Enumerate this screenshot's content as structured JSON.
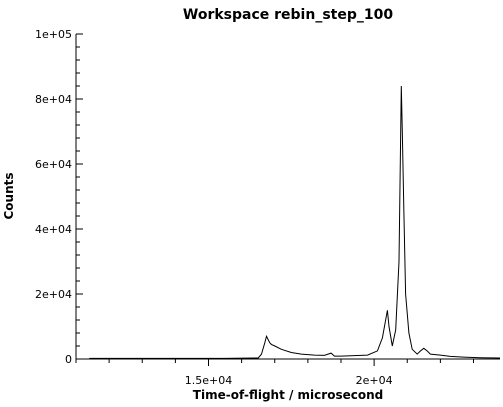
{
  "chart_data": {
    "type": "line",
    "title": "Workspace rebin_step_100",
    "xlabel": "Time-of-flight / microsecond",
    "ylabel": "Counts",
    "xlim": [
      11000,
      23800
    ],
    "ylim": [
      0,
      100000
    ],
    "x_ticks": [
      {
        "value": 15000,
        "label": "1.5e+04"
      },
      {
        "value": 20000,
        "label": "2e+04"
      }
    ],
    "y_ticks": [
      {
        "value": 0,
        "label": "0"
      },
      {
        "value": 20000,
        "label": "2e+04"
      },
      {
        "value": 40000,
        "label": "4e+04"
      },
      {
        "value": 60000,
        "label": "6e+04"
      },
      {
        "value": 80000,
        "label": "8e+04"
      },
      {
        "value": 100000,
        "label": "1e+05"
      }
    ],
    "grid": false,
    "series": [
      {
        "x": [
          11400,
          12500,
          14000,
          15500,
          16500,
          16600,
          16700,
          16750,
          16800,
          16850,
          16900,
          17000,
          17200,
          17500,
          17800,
          18200,
          18500,
          18700,
          18800,
          19000,
          19300,
          19800,
          20100,
          20250,
          20400,
          20450,
          20550,
          20650,
          20750,
          20820,
          20850,
          20900,
          20950,
          21050,
          21150,
          21300,
          21400,
          21500,
          21600,
          21700,
          22000,
          22300,
          22700,
          23200,
          23800
        ],
        "y": [
          200,
          200,
          200,
          200,
          300,
          1500,
          5000,
          7000,
          6000,
          5000,
          4500,
          4000,
          3000,
          2000,
          1500,
          1200,
          1100,
          1800,
          900,
          900,
          1000,
          1200,
          2500,
          6500,
          15000,
          10000,
          4000,
          9000,
          30000,
          84000,
          70000,
          45000,
          20000,
          8000,
          3000,
          1500,
          2500,
          3300,
          2500,
          1500,
          1200,
          800,
          600,
          400,
          300
        ]
      }
    ]
  }
}
